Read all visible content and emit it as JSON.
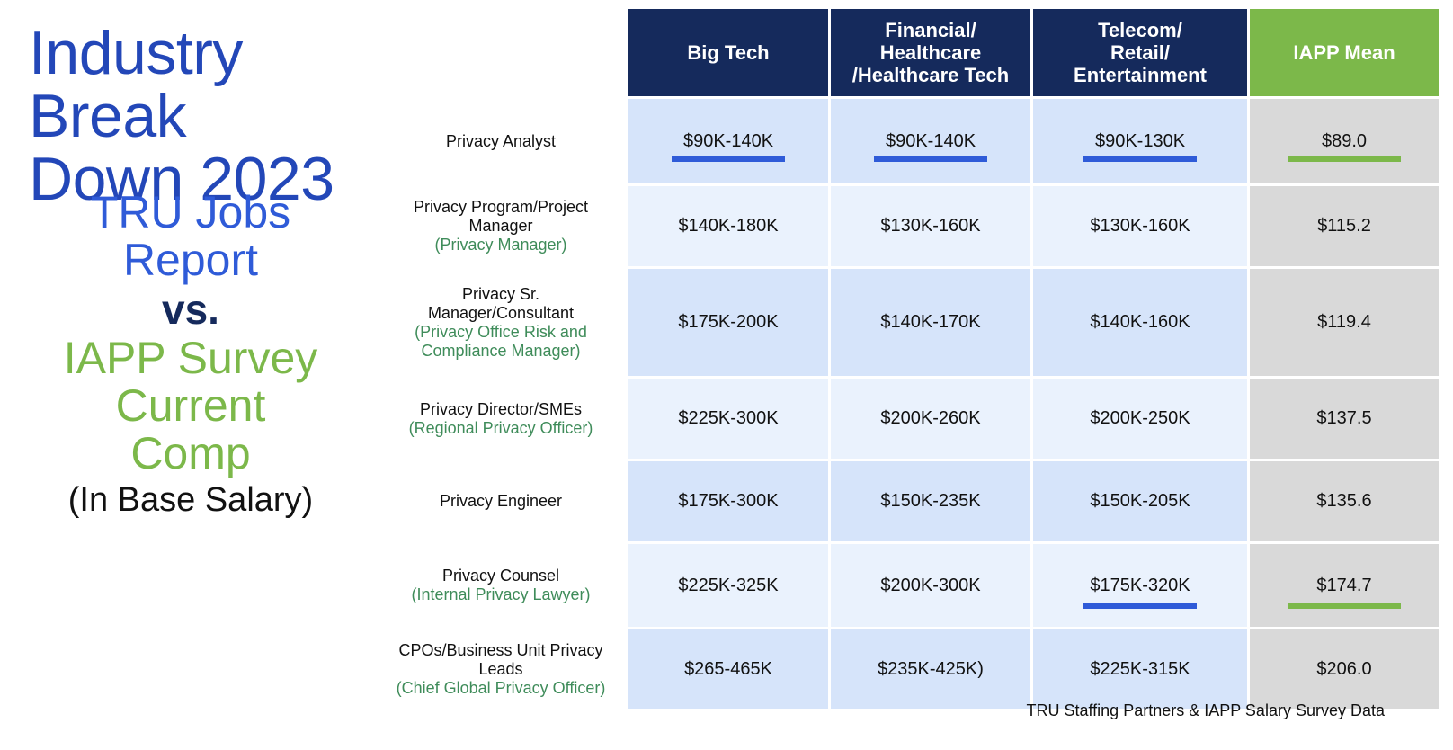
{
  "title": {
    "line1": "Industry Break",
    "line2": "Down 2023"
  },
  "subtitle": {
    "blue_line1": "TRU Jobs",
    "blue_line2": "Report",
    "vs": "vs.",
    "green_line1": "IAPP Survey",
    "green_line2": "Current",
    "green_line3": "Comp",
    "paren": "(In Base Salary)"
  },
  "colors": {
    "title_blue": "#2347b8",
    "blue": "#2f5bd8",
    "navy_header": "#152a5c",
    "green": "#7cb84a",
    "subtitle_green_text": "#3f8c5a",
    "row_dark": "#d6e4fa",
    "row_light": "#eaf2fd",
    "mean_gray": "#d9d9d9"
  },
  "table": {
    "headers": {
      "big_tech": "Big Tech",
      "financial_l1": "Financial/",
      "financial_l2": "Healthcare",
      "financial_l3": "/Healthcare Tech",
      "telecom_l1": "Telecom/",
      "telecom_l2": "Retail/",
      "telecom_l3": "Entertainment",
      "iapp_mean": "IAPP Mean"
    },
    "rows": [
      {
        "role_l1": "Privacy Analyst",
        "role_l2": "",
        "sub_l1": "",
        "sub_l2": "",
        "big_tech": "$90K-140K",
        "financial": "$90K-140K",
        "telecom": "$90K-130K",
        "mean": "$89.0"
      },
      {
        "role_l1": "Privacy Program/Project",
        "role_l2": "Manager",
        "sub_l1": "(Privacy Manager)",
        "sub_l2": "",
        "big_tech": "$140K-180K",
        "financial": "$130K-160K",
        "telecom": "$130K-160K",
        "mean": "$115.2"
      },
      {
        "role_l1": "Privacy Sr.",
        "role_l2": "Manager/Consultant",
        "sub_l1": "(Privacy Office Risk and",
        "sub_l2": "Compliance Manager)",
        "big_tech": "$175K-200K",
        "financial": "$140K-170K",
        "telecom": "$140K-160K",
        "mean": "$119.4"
      },
      {
        "role_l1": "Privacy Director/SMEs",
        "role_l2": "",
        "sub_l1": "(Regional Privacy Officer)",
        "sub_l2": "",
        "big_tech": "$225K-300K",
        "financial": "$200K-260K",
        "telecom": "$200K-250K",
        "mean": "$137.5"
      },
      {
        "role_l1": "Privacy Engineer",
        "role_l2": "",
        "sub_l1": "",
        "sub_l2": "",
        "big_tech": "$175K-300K",
        "financial": "$150K-235K",
        "telecom": "$150K-205K",
        "mean": "$135.6"
      },
      {
        "role_l1": "Privacy Counsel",
        "role_l2": "",
        "sub_l1": "(Internal Privacy Lawyer)",
        "sub_l2": "",
        "big_tech": "$225K-325K",
        "financial": "$200K-300K",
        "telecom": "$175K-320K",
        "mean": "$174.7"
      },
      {
        "role_l1": "CPOs/Business Unit Privacy",
        "role_l2": "Leads",
        "sub_l1": "(Chief Global Privacy Officer)",
        "sub_l2": "",
        "big_tech": "$265-465K",
        "financial": "$235K-425K)",
        "telecom": "$225K-315K",
        "mean": "$206.0"
      }
    ]
  },
  "source": "TRU Staffing Partners & IAPP Salary Survey Data"
}
